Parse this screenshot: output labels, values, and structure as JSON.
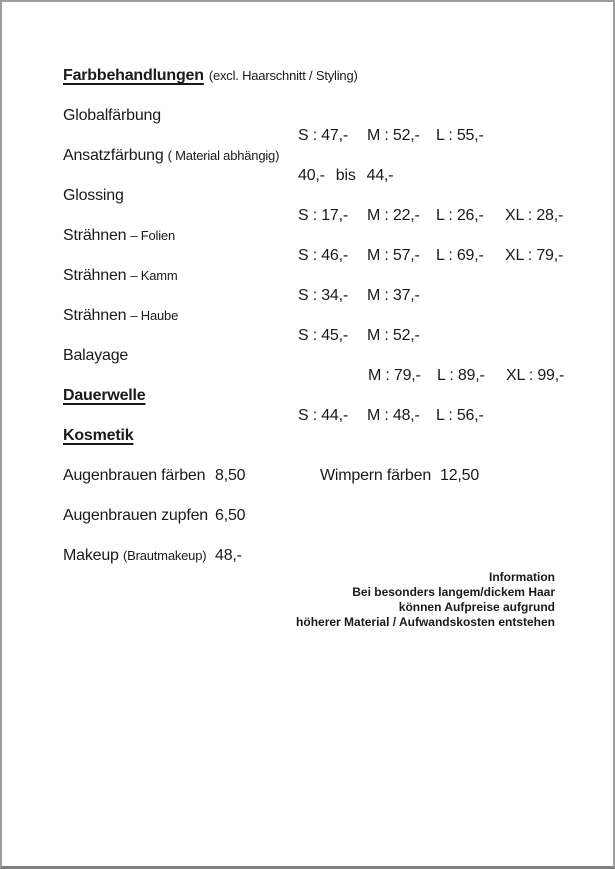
{
  "heading": {
    "title": "Farbbehandlungen",
    "note": "(excl. Haarschnitt / Styling)"
  },
  "price_list": {
    "size_amount_separator": " : ",
    "rows": [
      {
        "type": "service",
        "label": "Globalfärbung"
      },
      {
        "type": "prices",
        "items": [
          {
            "size": "S",
            "amount": "47,-"
          },
          {
            "size": "M",
            "amount": "52,-"
          },
          {
            "size": "L",
            "amount": "55,-"
          }
        ]
      },
      {
        "type": "service",
        "label": "Ansatzfärbung",
        "note": "( Material abhängig)"
      },
      {
        "type": "range",
        "from": "40,-",
        "separator": "bis",
        "to": "44,-"
      },
      {
        "type": "service",
        "label": "Glossing"
      },
      {
        "type": "prices",
        "items": [
          {
            "size": "S",
            "amount": "17,-"
          },
          {
            "size": "M",
            "amount": "22,-"
          },
          {
            "size": "L",
            "amount": "26,-"
          },
          {
            "size": "XL",
            "amount": "28,-"
          }
        ]
      },
      {
        "type": "service",
        "label": "Strähnen",
        "note": "– Folien"
      },
      {
        "type": "prices",
        "items": [
          {
            "size": "S",
            "amount": "46,-"
          },
          {
            "size": "M",
            "amount": "57,-"
          },
          {
            "size": "L",
            "amount": "69,-"
          },
          {
            "size": "XL",
            "amount": "79,-"
          }
        ]
      },
      {
        "type": "service",
        "label": "Strähnen",
        "note": "– Kamm"
      },
      {
        "type": "prices",
        "items": [
          {
            "size": "S",
            "amount": "34,-"
          },
          {
            "size": "M",
            "amount": "37,-"
          }
        ]
      },
      {
        "type": "service",
        "label": "Strähnen",
        "note": "– Haube"
      },
      {
        "type": "prices",
        "items": [
          {
            "size": "S",
            "amount": "45,-"
          },
          {
            "size": "M",
            "amount": "52,-"
          }
        ]
      },
      {
        "type": "service",
        "label": "Balayage"
      },
      {
        "type": "prices",
        "items": [
          {
            "size": "M",
            "amount": "79,-"
          },
          {
            "size": "L",
            "amount": "89,-"
          },
          {
            "size": "XL",
            "amount": "99,-"
          }
        ]
      },
      {
        "type": "heading",
        "label": "Dauerwelle"
      },
      {
        "type": "prices",
        "items": [
          {
            "size": "S",
            "amount": "44,-"
          },
          {
            "size": "M",
            "amount": "48,-"
          },
          {
            "size": "L",
            "amount": "56,-"
          }
        ]
      },
      {
        "type": "heading",
        "label": "Kosmetik"
      },
      {
        "type": "blank"
      },
      {
        "type": "duo",
        "items": [
          {
            "label": "Augenbrauen färben",
            "price": "8,50"
          },
          {
            "label": "Wimpern färben",
            "price": "12,50"
          }
        ]
      },
      {
        "type": "blank"
      },
      {
        "type": "duo",
        "items": [
          {
            "label": "Augenbrauen zupfen",
            "price": "6,50"
          }
        ]
      },
      {
        "type": "blank"
      },
      {
        "type": "duo",
        "items": [
          {
            "label": "Makeup",
            "note": "(Brautmakeup)",
            "price": "48,-"
          }
        ]
      }
    ]
  },
  "info": {
    "title": "Information",
    "lines": [
      "Bei besonders langem/dickem Haar",
      "können Aufpreise aufgrund",
      "höherer Material / Aufwandskosten entstehen"
    ]
  }
}
